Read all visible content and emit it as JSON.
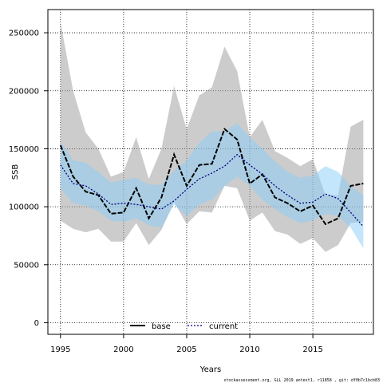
{
  "chart_data": {
    "type": "line",
    "xlabel": "Years",
    "ylabel": "SSB",
    "xlim": [
      1994,
      2019.8
    ],
    "ylim": [
      -10000,
      270000
    ],
    "x_ticks": [
      1995,
      2000,
      2005,
      2010,
      2015
    ],
    "y_ticks": [
      0,
      50000,
      100000,
      150000,
      200000,
      250000
    ],
    "x_tick_labels": [
      "1995",
      "2000",
      "2005",
      "2010",
      "2015"
    ],
    "y_tick_labels": [
      "0",
      "50000",
      "100000",
      "150000",
      "200000",
      "250000"
    ],
    "grid": true,
    "legend_position": "bottom-center",
    "x": [
      1995,
      1996,
      1997,
      1998,
      1999,
      2000,
      2001,
      2002,
      2003,
      2004,
      2005,
      2006,
      2007,
      2008,
      2009,
      2010,
      2011,
      2012,
      2013,
      2014,
      2015,
      2016,
      2017,
      2018,
      2019
    ],
    "series": [
      {
        "name": "base",
        "color": "#000000",
        "band_color": "#999999",
        "values": [
          153000,
          126000,
          113000,
          110000,
          94000,
          95000,
          116000,
          90000,
          108000,
          145000,
          118000,
          136000,
          137000,
          167000,
          158000,
          120000,
          128000,
          108000,
          103000,
          96000,
          101000,
          85000,
          90000,
          118000,
          120000
        ],
        "lower": [
          88000,
          81000,
          78000,
          81000,
          70000,
          70000,
          86000,
          67000,
          80000,
          104000,
          85000,
          96000,
          95000,
          118000,
          116000,
          88000,
          95000,
          79000,
          76000,
          68000,
          73000,
          61000,
          67000,
          86000,
          87000
        ],
        "upper": [
          259000,
          200000,
          164000,
          150000,
          126000,
          130000,
          160000,
          124000,
          150000,
          204000,
          167000,
          196000,
          203000,
          238000,
          217000,
          160000,
          175000,
          148000,
          142000,
          135000,
          141000,
          110000,
          110000,
          169000,
          175000
        ]
      },
      {
        "name": "current",
        "color": "#000080",
        "band_color": "#87CEFA",
        "values": [
          136000,
          120000,
          118000,
          111000,
          102000,
          103000,
          102000,
          100000,
          98000,
          105000,
          115000,
          124000,
          129000,
          135000,
          145000,
          136000,
          128000,
          118000,
          110000,
          103000,
          104000,
          111000,
          107000,
          95000,
          83000
        ],
        "lower": [
          116000,
          103000,
          101000,
          96000,
          88000,
          87000,
          90000,
          84000,
          82000,
          102000,
          92000,
          102000,
          106000,
          118000,
          126000,
          118000,
          106000,
          98000,
          91000,
          86000,
          88000,
          94000,
          92000,
          82000,
          64000
        ],
        "upper": [
          156000,
          140000,
          138000,
          130000,
          121000,
          123000,
          125000,
          119000,
          119000,
          131000,
          140000,
          155000,
          165000,
          165000,
          172000,
          160000,
          150000,
          139000,
          130000,
          125000,
          127000,
          135000,
          130000,
          118000,
          110000
        ]
      }
    ]
  },
  "footer": "stockassessment.org, GLL 2019 antest1, r11858 , git: df0b7c1bcb83"
}
